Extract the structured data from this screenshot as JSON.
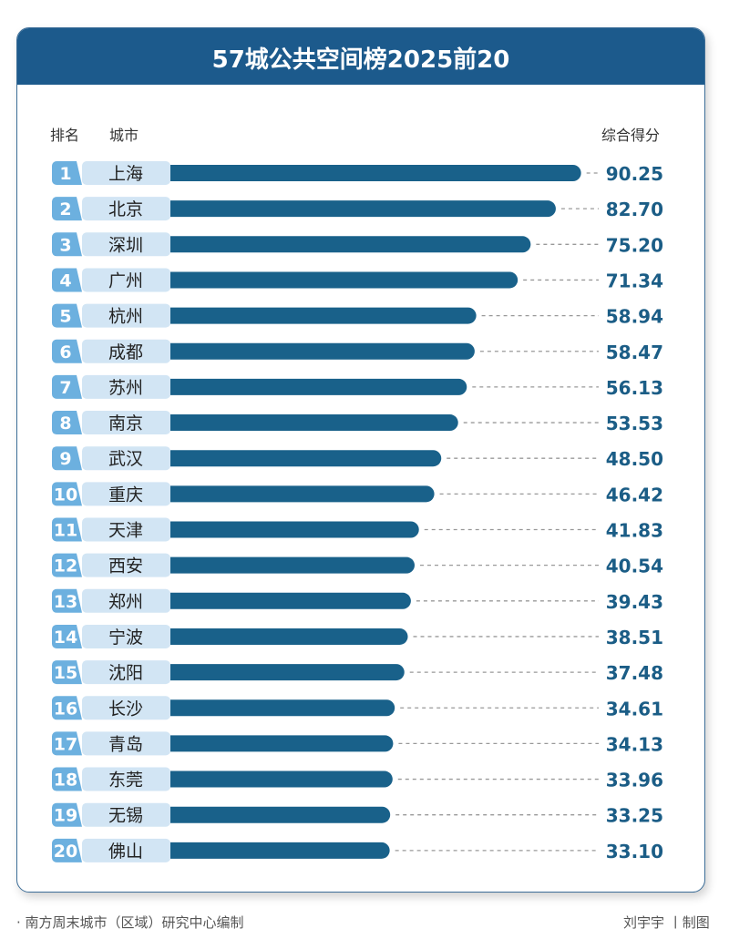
{
  "header": {
    "title": "57城公共空间榜2025前20",
    "col_rank": "排名",
    "col_city": "城市",
    "col_score": "综合得分"
  },
  "footer": {
    "source": "· 南方周末城市（区域）研究中心编制",
    "credit": "刘宇宇 丨制图"
  },
  "colors": {
    "bar": "#19618a",
    "rank_box": "#6cb0df",
    "city_box": "#d2e5f4",
    "value": "#1b5d86",
    "title_bg": "#1c5a8c"
  },
  "chart_data": {
    "type": "bar",
    "orientation": "horizontal",
    "title": "57城公共空间榜2025前20",
    "xlabel": "综合得分",
    "ranks": [
      "1",
      "2",
      "3",
      "4",
      "5",
      "6",
      "7",
      "8",
      "9",
      "10",
      "11",
      "12",
      "13",
      "14",
      "15",
      "16",
      "17",
      "18",
      "19",
      "20"
    ],
    "categories": [
      "上海",
      "北京",
      "深圳",
      "广州",
      "杭州",
      "成都",
      "苏州",
      "南京",
      "武汉",
      "重庆",
      "天津",
      "西安",
      "郑州",
      "宁波",
      "沈阳",
      "长沙",
      "青岛",
      "东莞",
      "无锡",
      "佛山"
    ],
    "value_labels": [
      "90.25",
      "82.70",
      "75.20",
      "71.34",
      "58.94",
      "58.47",
      "56.13",
      "53.53",
      "48.50",
      "46.42",
      "41.83",
      "40.54",
      "39.43",
      "38.51",
      "37.48",
      "34.61",
      "34.13",
      "33.96",
      "33.25",
      "33.10"
    ],
    "values": [
      90.25,
      82.7,
      75.2,
      71.34,
      58.94,
      58.47,
      56.13,
      53.53,
      48.5,
      46.42,
      41.83,
      40.54,
      39.43,
      38.51,
      37.48,
      34.61,
      34.13,
      33.96,
      33.25,
      33.1
    ]
  }
}
